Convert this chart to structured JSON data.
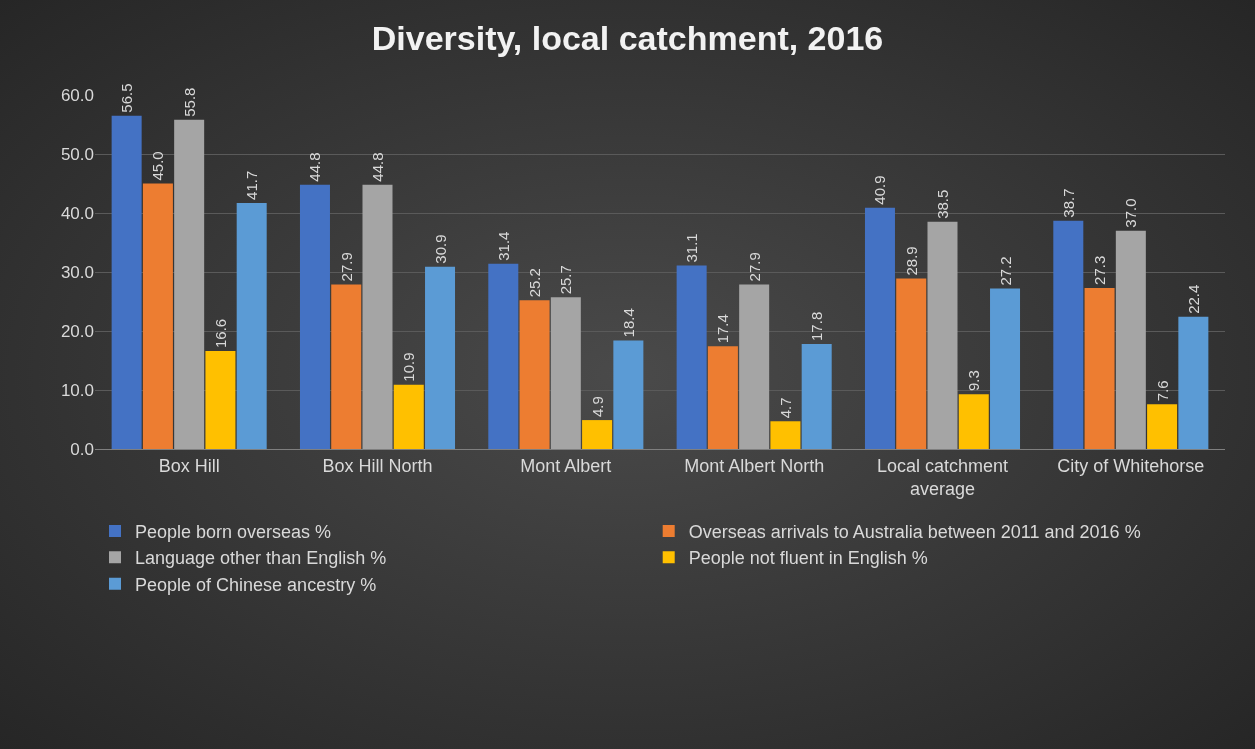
{
  "chart_data": {
    "type": "bar",
    "title": "Diversity, local catchment, 2016",
    "categories": [
      "Box Hill",
      "Box Hill North",
      "Mont Albert",
      "Mont Albert North",
      "Local catchment average",
      "City of Whitehorse"
    ],
    "series": [
      {
        "name": "People born overseas %",
        "color": "#4472c4",
        "values": [
          56.5,
          44.8,
          31.4,
          31.1,
          40.9,
          38.7
        ],
        "value_labels": [
          "56.5",
          "44.8",
          "31.4",
          "31.1",
          "40.9",
          "38.7"
        ]
      },
      {
        "name": "Overseas arrivals to Australia between 2011 and 2016 %",
        "color": "#ed7d31",
        "values": [
          45.0,
          27.9,
          25.2,
          17.4,
          28.9,
          27.3
        ],
        "value_labels": [
          "45.0",
          "27.9",
          "25.2",
          "17.4",
          "28.9",
          "27.3"
        ]
      },
      {
        "name": "Language other than English %",
        "color": "#a5a5a5",
        "values": [
          55.8,
          44.8,
          25.7,
          27.9,
          38.5,
          37.0
        ],
        "value_labels": [
          "55.8",
          "44.8",
          "25.7",
          "27.9",
          "38.5",
          "37.0"
        ]
      },
      {
        "name": "People not fluent in English %",
        "color": "#ffc000",
        "values": [
          16.6,
          10.9,
          4.9,
          4.7,
          9.3,
          7.6
        ],
        "value_labels": [
          "16.6",
          "10.9",
          "4.9",
          "4.7",
          "9.3",
          "7.6"
        ]
      },
      {
        "name": "People of Chinese ancestry %",
        "color": "#5b9bd5",
        "values": [
          41.7,
          30.9,
          18.4,
          17.8,
          27.2,
          22.4
        ],
        "value_labels": [
          "41.7",
          "30.9",
          "18.4",
          "17.8",
          "27.2",
          "22.4"
        ]
      }
    ],
    "ylim": [
      0,
      60
    ],
    "yticks": [
      {
        "value": 0,
        "label": "0.0"
      },
      {
        "value": 10,
        "label": "10.0"
      },
      {
        "value": 20,
        "label": "20.0"
      },
      {
        "value": 30,
        "label": "30.0"
      },
      {
        "value": 40,
        "label": "40.0"
      },
      {
        "value": 50,
        "label": "50.0"
      },
      {
        "value": 60,
        "label": "60.0"
      }
    ],
    "grid": "y",
    "legend": "bottom"
  }
}
